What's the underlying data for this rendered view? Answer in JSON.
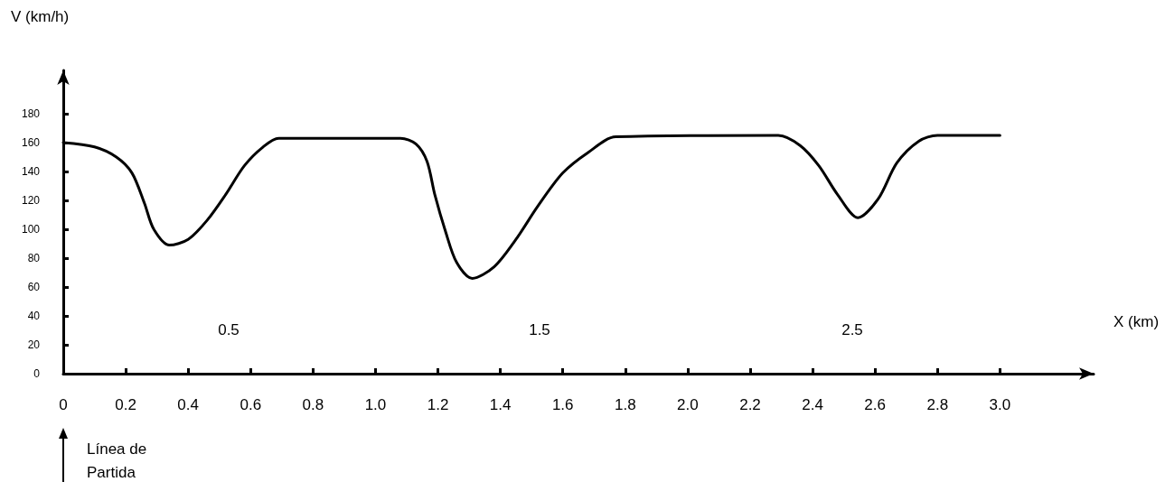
{
  "chart_data": {
    "type": "line",
    "xlabel": "X (km)",
    "ylabel": "V (km/h)",
    "series": [
      {
        "color": "#000000",
        "x": [
          0,
          0.1,
          0.17,
          0.22,
          0.26,
          0.29,
          0.34,
          0.4,
          0.46,
          0.52,
          0.58,
          0.64,
          0.69,
          1.08,
          1.13,
          1.165,
          1.19,
          1.225,
          1.26,
          1.31,
          1.38,
          1.45,
          1.52,
          1.6,
          1.68,
          1.77,
          2.29,
          2.36,
          2.42,
          2.48,
          2.545,
          2.61,
          2.67,
          2.74,
          2.8,
          3.0
        ],
        "values": [
          160,
          157,
          150,
          139,
          118,
          100,
          89,
          93,
          106,
          124,
          144,
          157,
          163,
          163,
          159,
          147,
          124,
          98,
          77,
          66,
          74,
          93,
          116,
          139,
          153,
          164,
          165,
          158,
          144,
          124,
          108,
          121,
          146,
          161,
          165,
          165
        ]
      }
    ],
    "xlim": [
      0,
      3.3
    ],
    "ylim": [
      0,
      210
    ],
    "xticks": [
      0,
      0.2,
      0.4,
      0.6,
      0.8,
      {
        "value": 1,
        "label": "1.0"
      },
      1.2,
      1.4,
      1.6,
      1.8,
      {
        "value": 2,
        "label": "2.0"
      },
      2.2,
      2.4,
      2.6,
      2.8,
      {
        "value": 3,
        "label": "3.0"
      }
    ],
    "yticks": [
      0,
      20,
      40,
      60,
      80,
      100,
      120,
      140,
      160,
      180
    ],
    "annotations": [
      "0.5",
      "1.5",
      "2.5",
      "Línea de Partida"
    ],
    "grid": false,
    "marker": "none",
    "line_style": "solid"
  }
}
